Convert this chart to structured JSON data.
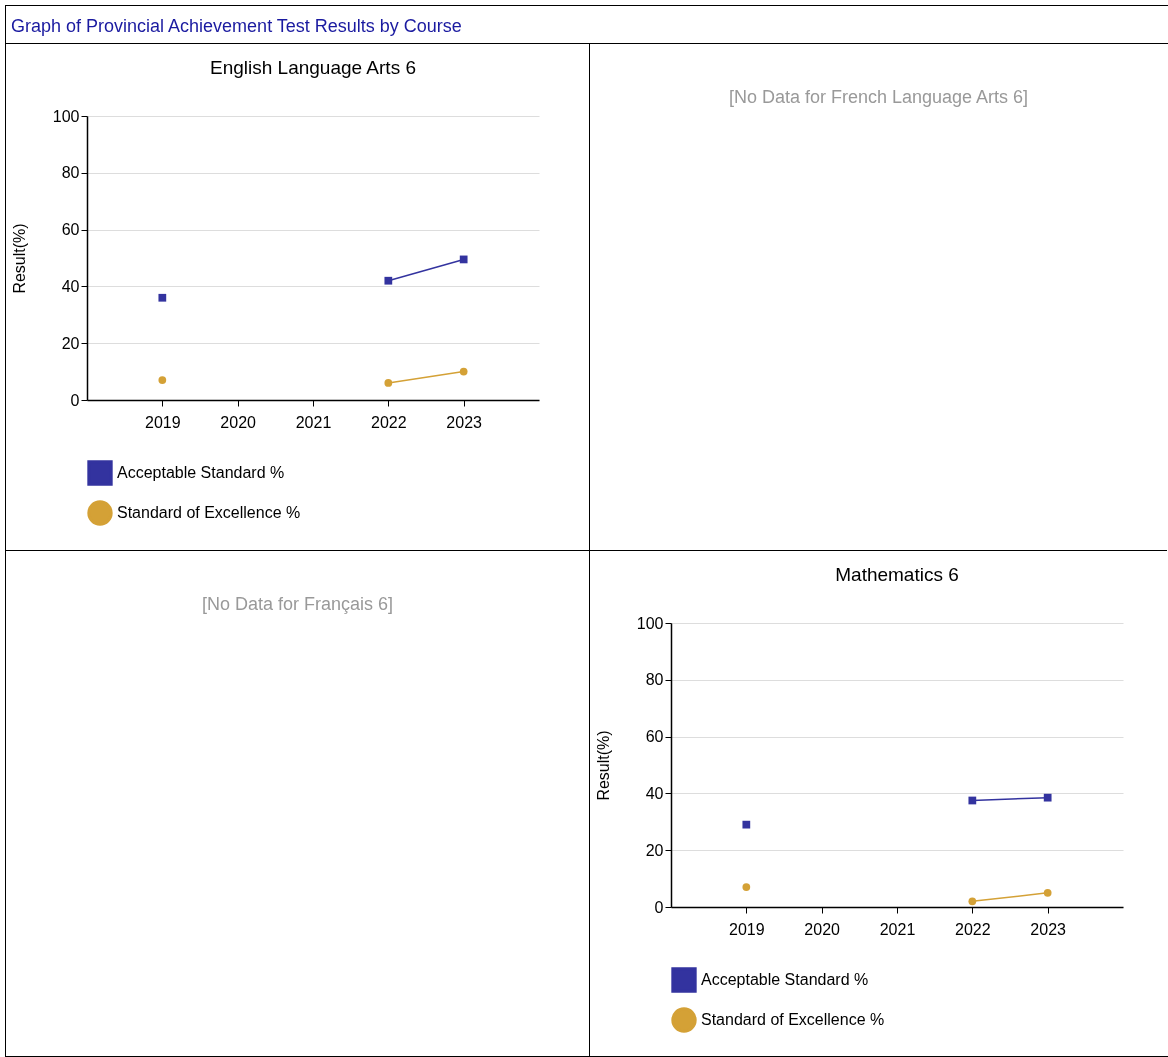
{
  "chart_data": [
    {
      "type": "line",
      "title": "English Language Arts 6",
      "ylabel": "Result(%)",
      "annotations": [
        "Graph of Provincial Achievement Test Results by Course"
      ],
      "x": [
        2019,
        2020,
        2021,
        2022,
        2023
      ],
      "xlim": [
        2018,
        2024
      ],
      "xticks": [
        2019,
        2020,
        2021,
        2022,
        2023
      ],
      "ylim": [
        0,
        100
      ],
      "yticks": [
        0,
        20,
        40,
        60,
        80,
        100
      ],
      "grid": "y",
      "legend": "bottom",
      "series": [
        {
          "name": "Acceptable Standard %",
          "color": "#33339f",
          "marker": "square",
          "values": [
            36,
            null,
            null,
            42,
            49.5
          ]
        },
        {
          "name": "Standard of Excellence %",
          "color": "#d4a136",
          "marker": "circle",
          "values": [
            7,
            null,
            null,
            6,
            10
          ]
        }
      ]
    },
    {
      "type": "other",
      "title": "[No Data for French Language Arts 6]"
    },
    {
      "type": "other",
      "title": "[No Data for Français 6]"
    },
    {
      "type": "line",
      "title": "Mathematics 6",
      "ylabel": "Result(%)",
      "x": [
        2019,
        2020,
        2021,
        2022,
        2023
      ],
      "xlim": [
        2018,
        2024
      ],
      "xticks": [
        2019,
        2020,
        2021,
        2022,
        2023
      ],
      "ylim": [
        0,
        100
      ],
      "yticks": [
        0,
        20,
        40,
        60,
        80,
        100
      ],
      "grid": "y",
      "legend": "bottom",
      "series": [
        {
          "name": "Acceptable Standard %",
          "color": "#33339f",
          "marker": "square",
          "values": [
            29,
            null,
            null,
            37.5,
            38.5
          ]
        },
        {
          "name": "Standard of Excellence %",
          "color": "#d4a136",
          "marker": "circle",
          "values": [
            7,
            null,
            null,
            2,
            5
          ]
        }
      ]
    }
  ]
}
